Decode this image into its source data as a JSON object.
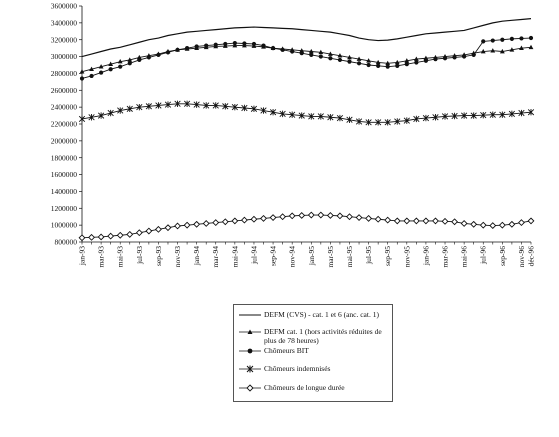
{
  "chart_data": {
    "type": "line",
    "title": "",
    "xlabel": "",
    "ylabel": "",
    "ylim": [
      800000,
      3600000
    ],
    "y_ticks": [
      800000,
      1000000,
      1200000,
      1400000,
      1600000,
      1800000,
      2000000,
      2200000,
      2400000,
      2600000,
      2800000,
      3000000,
      3200000,
      3400000,
      3600000
    ],
    "grid": false,
    "legend_position": "bottom",
    "x": [
      "jan-93",
      "fév-93",
      "mar-93",
      "avr-93",
      "mai-93",
      "jun-93",
      "jul-93",
      "aoû-93",
      "sep-93",
      "oct-93",
      "nov-93",
      "déc-93",
      "jan-94",
      "fév-94",
      "mar-94",
      "avr-94",
      "mai-94",
      "jun-94",
      "jul-94",
      "aoû-94",
      "sep-94",
      "oct-94",
      "nov-94",
      "déc-94",
      "jan-95",
      "fév-95",
      "mar-95",
      "avr-95",
      "mai-95",
      "jun-95",
      "jul-95",
      "aoû-95",
      "sep-95",
      "oct-95",
      "nov-95",
      "déc-95",
      "jan-96",
      "fév-96",
      "mar-96",
      "avr-96",
      "mai-96",
      "jun-96",
      "jul-96",
      "aoû-96",
      "sep-96",
      "oct-96",
      "nov-96",
      "déc-96"
    ],
    "x_tick_labels": [
      "jan-93",
      "mar-93",
      "mai-93",
      "jul-93",
      "sep-93",
      "nov-93",
      "jan-94",
      "mar-94",
      "mai-94",
      "jul-94",
      "sep-94",
      "nov-94",
      "jan-95",
      "mar-95",
      "mai-95",
      "jul-95",
      "sep-95",
      "nov-95",
      "jan-96",
      "mar-96",
      "mai-96",
      "jul-96",
      "sep-96",
      "nov-96",
      "déc-96"
    ],
    "series": [
      {
        "name": "DEFM (CVS) - cat. 1 et 6 (anc. cat. 1)",
        "marker": "none",
        "color": "#111111",
        "values": [
          3000000,
          3030000,
          3060000,
          3090000,
          3110000,
          3140000,
          3170000,
          3200000,
          3220000,
          3250000,
          3270000,
          3290000,
          3300000,
          3310000,
          3320000,
          3330000,
          3340000,
          3345000,
          3350000,
          3345000,
          3340000,
          3335000,
          3330000,
          3320000,
          3310000,
          3300000,
          3290000,
          3270000,
          3250000,
          3220000,
          3200000,
          3190000,
          3195000,
          3210000,
          3230000,
          3250000,
          3270000,
          3280000,
          3290000,
          3300000,
          3310000,
          3340000,
          3370000,
          3400000,
          3420000,
          3430000,
          3440000,
          3450000
        ]
      },
      {
        "name": "DEFM cat. 1 (hors activités réduites de plus de 78 heures)",
        "marker": "triangle",
        "color": "#111111",
        "values": [
          2820000,
          2850000,
          2880000,
          2910000,
          2940000,
          2960000,
          2990000,
          3010000,
          3030000,
          3060000,
          3080000,
          3090000,
          3100000,
          3110000,
          3120000,
          3125000,
          3130000,
          3130000,
          3125000,
          3115000,
          3100000,
          3090000,
          3080000,
          3070000,
          3060000,
          3050000,
          3030000,
          3010000,
          2990000,
          2970000,
          2950000,
          2930000,
          2920000,
          2930000,
          2950000,
          2970000,
          2980000,
          2990000,
          3000000,
          3010000,
          3020000,
          3040000,
          3060000,
          3070000,
          3060000,
          3080000,
          3100000,
          3110000
        ]
      },
      {
        "name": "Chômeurs BIT",
        "marker": "circle",
        "color": "#111111",
        "values": [
          2740000,
          2770000,
          2810000,
          2850000,
          2880000,
          2920000,
          2960000,
          2990000,
          3020000,
          3050000,
          3080000,
          3100000,
          3120000,
          3130000,
          3140000,
          3150000,
          3160000,
          3155000,
          3150000,
          3130000,
          3100000,
          3080000,
          3060000,
          3040000,
          3020000,
          3000000,
          2980000,
          2960000,
          2940000,
          2920000,
          2900000,
          2890000,
          2880000,
          2890000,
          2910000,
          2930000,
          2950000,
          2970000,
          2980000,
          2990000,
          3000000,
          3020000,
          3180000,
          3190000,
          3200000,
          3210000,
          3215000,
          3220000
        ]
      },
      {
        "name": "Chômeurs indemnisés",
        "marker": "star",
        "color": "#111111",
        "values": [
          2260000,
          2280000,
          2300000,
          2330000,
          2360000,
          2380000,
          2400000,
          2410000,
          2420000,
          2430000,
          2440000,
          2440000,
          2430000,
          2420000,
          2420000,
          2410000,
          2400000,
          2390000,
          2380000,
          2360000,
          2340000,
          2320000,
          2310000,
          2300000,
          2290000,
          2290000,
          2280000,
          2270000,
          2250000,
          2230000,
          2220000,
          2220000,
          2220000,
          2230000,
          2240000,
          2260000,
          2270000,
          2280000,
          2290000,
          2295000,
          2300000,
          2300000,
          2305000,
          2310000,
          2310000,
          2320000,
          2330000,
          2340000
        ]
      },
      {
        "name": "Chômeurs de longue durée",
        "marker": "diamond",
        "color": "#111111",
        "values": [
          850000,
          855000,
          860000,
          870000,
          880000,
          890000,
          910000,
          930000,
          950000,
          970000,
          990000,
          1000000,
          1010000,
          1020000,
          1030000,
          1040000,
          1050000,
          1060000,
          1070000,
          1080000,
          1090000,
          1100000,
          1110000,
          1115000,
          1120000,
          1120000,
          1115000,
          1110000,
          1100000,
          1090000,
          1080000,
          1070000,
          1060000,
          1050000,
          1050000,
          1050000,
          1050000,
          1050000,
          1045000,
          1040000,
          1020000,
          1010000,
          1000000,
          995000,
          1000000,
          1010000,
          1030000,
          1050000
        ]
      }
    ]
  }
}
